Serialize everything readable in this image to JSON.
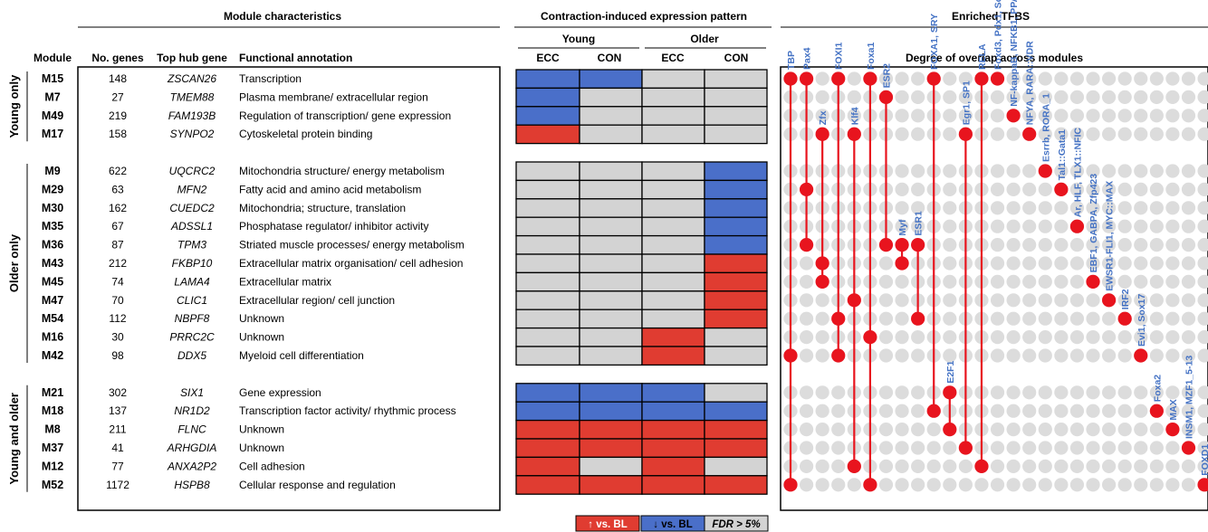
{
  "headers": {
    "module_characteristics": "Module characteristics",
    "expression_pattern": "Contraction-induced expression pattern",
    "enriched_tfbs": "Enriched TFBS",
    "young": "Young",
    "older": "Older",
    "module": "Module",
    "no_genes": "No. genes",
    "top_hub_gene": "Top hub gene",
    "functional_annotation": "Functional annotation",
    "ecc": "ECC",
    "con": "CON",
    "overlap": "Degree of overlap across modules"
  },
  "groups": [
    "Young only",
    "Older only",
    "Young and older"
  ],
  "modules": [
    {
      "id": "M15",
      "n": "148",
      "hub": "ZSCAN26",
      "func": "Transcription",
      "group": 0,
      "pattern": [
        "down",
        "down",
        "none",
        "none"
      ]
    },
    {
      "id": "M7",
      "n": "27",
      "hub": "TMEM88",
      "func": "Plasma membrane/ extracellular region",
      "group": 0,
      "pattern": [
        "down",
        "none",
        "none",
        "none"
      ]
    },
    {
      "id": "M49",
      "n": "219",
      "hub": "FAM193B",
      "func": "Regulation of transcription/ gene expression",
      "group": 0,
      "pattern": [
        "down",
        "none",
        "none",
        "none"
      ]
    },
    {
      "id": "M17",
      "n": "158",
      "hub": "SYNPO2",
      "func": "Cytoskeletal protein binding",
      "group": 0,
      "pattern": [
        "up",
        "none",
        "none",
        "none"
      ]
    },
    {
      "id": "M9",
      "n": "622",
      "hub": "UQCRC2",
      "func": "Mitochondria structure/ energy metabolism",
      "group": 1,
      "pattern": [
        "none",
        "none",
        "none",
        "down"
      ]
    },
    {
      "id": "M29",
      "n": "63",
      "hub": "MFN2",
      "func": "Fatty acid and amino acid metabolism",
      "group": 1,
      "pattern": [
        "none",
        "none",
        "none",
        "down"
      ]
    },
    {
      "id": "M30",
      "n": "162",
      "hub": "CUEDC2",
      "func": "Mitochondria; structure, translation",
      "group": 1,
      "pattern": [
        "none",
        "none",
        "none",
        "down"
      ]
    },
    {
      "id": "M35",
      "n": "67",
      "hub": "ADSSL1",
      "func": "Phosphatase regulator/ inhibitor activity",
      "group": 1,
      "pattern": [
        "none",
        "none",
        "none",
        "down"
      ]
    },
    {
      "id": "M36",
      "n": "87",
      "hub": "TPM3",
      "func": "Striated muscle processes/ energy metabolism",
      "group": 1,
      "pattern": [
        "none",
        "none",
        "none",
        "down"
      ]
    },
    {
      "id": "M43",
      "n": "212",
      "hub": "FKBP10",
      "func": "Extracellular matrix organisation/ cell adhesion",
      "group": 1,
      "pattern": [
        "none",
        "none",
        "none",
        "up"
      ]
    },
    {
      "id": "M45",
      "n": "74",
      "hub": "LAMA4",
      "func": "Extracellular matrix",
      "group": 1,
      "pattern": [
        "none",
        "none",
        "none",
        "up"
      ]
    },
    {
      "id": "M47",
      "n": "70",
      "hub": "CLIC1",
      "func": "Extracellular region/ cell junction",
      "group": 1,
      "pattern": [
        "none",
        "none",
        "none",
        "up"
      ]
    },
    {
      "id": "M54",
      "n": "112",
      "hub": "NBPF8",
      "func": "Unknown",
      "group": 1,
      "pattern": [
        "none",
        "none",
        "none",
        "up"
      ]
    },
    {
      "id": "M16",
      "n": "30",
      "hub": "PRRC2C",
      "func": "Unknown",
      "group": 1,
      "pattern": [
        "none",
        "none",
        "up",
        "none"
      ]
    },
    {
      "id": "M42",
      "n": "98",
      "hub": "DDX5",
      "func": "Myeloid cell differentiation",
      "group": 1,
      "pattern": [
        "none",
        "none",
        "up",
        "none"
      ]
    },
    {
      "id": "M21",
      "n": "302",
      "hub": "SIX1",
      "func": "Gene expression",
      "group": 2,
      "pattern": [
        "down",
        "down",
        "down",
        "none"
      ]
    },
    {
      "id": "M18",
      "n": "137",
      "hub": "NR1D2",
      "func": "Transcription factor activity/ rhythmic process",
      "group": 2,
      "pattern": [
        "down",
        "down",
        "down",
        "down"
      ]
    },
    {
      "id": "M8",
      "n": "211",
      "hub": "FLNC",
      "func": "Unknown",
      "group": 2,
      "pattern": [
        "up",
        "up",
        "up",
        "up"
      ]
    },
    {
      "id": "M37",
      "n": "41",
      "hub": "ARHGDIA",
      "func": "Unknown",
      "group": 2,
      "pattern": [
        "up",
        "up",
        "up",
        "up"
      ]
    },
    {
      "id": "M12",
      "n": "77",
      "hub": "ANXA2P2",
      "func": "Cell adhesion",
      "group": 2,
      "pattern": [
        "up",
        "none",
        "up",
        "none"
      ]
    },
    {
      "id": "M52",
      "n": "1172",
      "hub": "HSPB8",
      "func": "Cellular response and regulation",
      "group": 2,
      "pattern": [
        "up",
        "up",
        "up",
        "up"
      ]
    }
  ],
  "tfbs": [
    {
      "label": "TBP",
      "rows": [
        0,
        14,
        20
      ]
    },
    {
      "label": "Pax4",
      "rows": [
        0,
        5,
        8
      ]
    },
    {
      "label": "Zfx",
      "rows": [
        3,
        9,
        10
      ]
    },
    {
      "label": "FOXI1",
      "rows": [
        0,
        12,
        14
      ]
    },
    {
      "label": "Klf4",
      "rows": [
        3,
        11,
        19
      ]
    },
    {
      "label": "Foxa1",
      "rows": [
        0,
        13,
        20
      ]
    },
    {
      "label": "ESR2",
      "rows": [
        1,
        8
      ]
    },
    {
      "label": "Myf",
      "rows": [
        8,
        9
      ]
    },
    {
      "label": "ESR1",
      "rows": [
        8,
        12
      ]
    },
    {
      "label": "FOXA1, SRY",
      "rows": [
        0,
        16
      ]
    },
    {
      "label": "E2F1",
      "rows": [
        15,
        17
      ]
    },
    {
      "label": "Egr1, SP1",
      "rows": [
        3,
        18
      ]
    },
    {
      "label": "RELA",
      "rows": [
        0,
        19
      ]
    },
    {
      "label": "Foxd3, Pdx1, Sox5",
      "rows": [
        0
      ]
    },
    {
      "label": "NF-kappaB, NFKB1, PPARG::RXRA, REL",
      "rows": [
        2
      ]
    },
    {
      "label": "NFYA, RARA::VDR",
      "rows": [
        3
      ]
    },
    {
      "label": "Esrrb, RORA_1",
      "rows": [
        4
      ]
    },
    {
      "label": "Tal1::Gata1",
      "rows": [
        5
      ]
    },
    {
      "label": "Ar, HLF, TLX1::NFIC",
      "rows": [
        7
      ]
    },
    {
      "label": "EBF1, GABPA, Zfp423",
      "rows": [
        10
      ]
    },
    {
      "label": "EWSR1-FLI1, MYC::MAX",
      "rows": [
        11
      ]
    },
    {
      "label": "IRF2",
      "rows": [
        12
      ]
    },
    {
      "label": "Evi1, Sox17",
      "rows": [
        14
      ]
    },
    {
      "label": "Foxa2",
      "rows": [
        16
      ]
    },
    {
      "label": "MAX",
      "rows": [
        17
      ]
    },
    {
      "label": "INSM1, MZF1_5-13",
      "rows": [
        18
      ]
    },
    {
      "label": "FOXD1",
      "rows": [
        20
      ]
    }
  ],
  "legend": {
    "up": "↑ vs. BL",
    "down": "↓ vs. BL",
    "none": "FDR > 5%"
  },
  "colors": {
    "up": "#e03c31",
    "down": "#4a6fc9",
    "none": "#d3d3d3",
    "dot_bg": "#dcdcdc",
    "dot": "#e8141e",
    "tf_text": "#4472c4"
  }
}
